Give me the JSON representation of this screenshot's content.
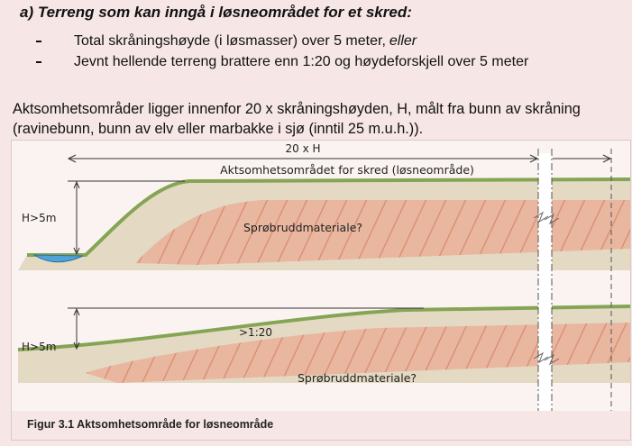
{
  "heading": "a) Terreng som kan inngå i løsneområdet for et skred:",
  "bullets": [
    {
      "text": "Total skråningshøyde (i løsmasser) over 5 meter,",
      "emphasis": "eller"
    },
    {
      "text": "Jevnt hellende terreng brattere enn 1:20 og høydeforskjell over 5 meter"
    }
  ],
  "paragraph": "Aktsomhetsområder ligger innenfor 20 x skråningshøyden, H, målt fra bunn av skråning (ravinebunn, bunn av elv eller marbakke i sjø (inntil 25 m.u.h.)).",
  "figure": {
    "width_label": "20 x H",
    "zone_label": "Aktsomhetsområdet for skred (løsneområde)",
    "upper": {
      "height_label": "H>5m",
      "material_label": "Sprøbruddmateriale?"
    },
    "lower": {
      "height_label": "H>5m",
      "slope_label": ">1:20",
      "material_label": "Sprøbruddmateriale?"
    },
    "caption": "Figur 3.1 Aktsomhetsområde for løsneområde"
  }
}
